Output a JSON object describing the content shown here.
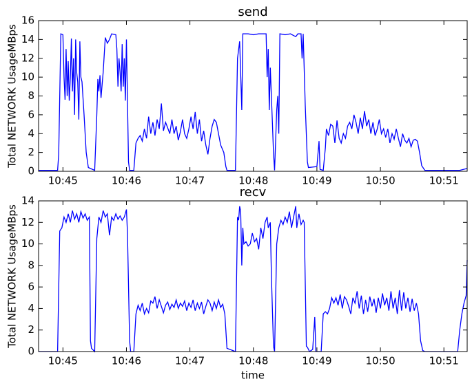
{
  "chart_data": [
    {
      "type": "line",
      "title": "send",
      "ylabel": "Total NETWORK UsageMBps",
      "color": "#0000ff",
      "xlim": [
        "10:44:37",
        "10:51:22"
      ],
      "xticks": [
        "10:45",
        "10:46",
        "10:47",
        "10:48",
        "10:49",
        "10:50",
        "10:51"
      ],
      "ylim": [
        0,
        16
      ],
      "yticks": [
        0,
        2,
        4,
        6,
        8,
        10,
        12,
        14,
        16
      ],
      "x": [
        "10:44:37",
        "10:44:55",
        "10:44:56",
        "10:44:58",
        "10:45:00",
        "10:45:01",
        "10:45:02",
        "10:45:03",
        "10:45:04",
        "10:45:05",
        "10:45:06",
        "10:45:07",
        "10:45:08",
        "10:45:09",
        "10:45:10",
        "10:45:11",
        "10:45:12",
        "10:45:13",
        "10:45:14",
        "10:45:15",
        "10:45:16",
        "10:45:17",
        "10:45:18",
        "10:45:20",
        "10:45:22",
        "10:45:24",
        "10:45:30",
        "10:45:32",
        "10:45:33",
        "10:45:34",
        "10:45:35",
        "10:45:36",
        "10:45:38",
        "10:45:40",
        "10:45:42",
        "10:45:44",
        "10:45:46",
        "10:45:50",
        "10:45:51",
        "10:45:52",
        "10:45:53",
        "10:45:54",
        "10:45:55",
        "10:45:56",
        "10:45:57",
        "10:45:58",
        "10:45:59",
        "10:46:00",
        "10:46:02",
        "10:46:03",
        "10:46:07",
        "10:46:09",
        "10:46:11",
        "10:46:13",
        "10:46:15",
        "10:46:17",
        "10:46:19",
        "10:46:21",
        "10:46:23",
        "10:46:25",
        "10:46:27",
        "10:46:29",
        "10:46:31",
        "10:46:33",
        "10:46:35",
        "10:46:37",
        "10:46:39",
        "10:46:41",
        "10:46:43",
        "10:46:45",
        "10:46:47",
        "10:46:49",
        "10:46:51",
        "10:46:53",
        "10:46:55",
        "10:46:57",
        "10:46:59",
        "10:47:01",
        "10:47:03",
        "10:47:05",
        "10:47:07",
        "10:47:09",
        "10:47:11",
        "10:47:13",
        "10:47:15",
        "10:47:17",
        "10:47:19",
        "10:47:21",
        "10:47:23",
        "10:47:25",
        "10:47:27",
        "10:47:29",
        "10:47:32",
        "10:47:34",
        "10:47:35",
        "10:47:43",
        "10:47:45",
        "10:47:47",
        "10:47:49",
        "10:47:50",
        "10:47:55",
        "10:48:00",
        "10:48:05",
        "10:48:12",
        "10:48:13",
        "10:48:14",
        "10:48:15",
        "10:48:16",
        "10:48:18",
        "10:48:19",
        "10:48:20",
        "10:48:22",
        "10:48:23",
        "10:48:24",
        "10:48:25",
        "10:48:30",
        "10:48:35",
        "10:48:40",
        "10:48:42",
        "10:48:45",
        "10:48:46",
        "10:48:47",
        "10:48:49",
        "10:48:51",
        "10:48:52",
        "10:49:00",
        "10:49:02",
        "10:49:03",
        "10:49:06",
        "10:49:08",
        "10:49:09",
        "10:49:11",
        "10:49:13",
        "10:49:15",
        "10:49:17",
        "10:49:19",
        "10:49:21",
        "10:49:23",
        "10:49:25",
        "10:49:27",
        "10:49:29",
        "10:49:31",
        "10:49:33",
        "10:49:35",
        "10:49:37",
        "10:49:39",
        "10:49:41",
        "10:49:43",
        "10:49:45",
        "10:49:47",
        "10:49:49",
        "10:49:51",
        "10:49:53",
        "10:49:55",
        "10:49:57",
        "10:49:59",
        "10:50:01",
        "10:50:03",
        "10:50:05",
        "10:50:07",
        "10:50:09",
        "10:50:11",
        "10:50:13",
        "10:50:15",
        "10:50:17",
        "10:50:19",
        "10:50:21",
        "10:50:23",
        "10:50:25",
        "10:50:27",
        "10:50:29",
        "10:50:31",
        "10:50:33",
        "10:50:35",
        "10:50:37",
        "10:50:39",
        "10:50:42",
        "10:51:15",
        "10:51:22"
      ],
      "values": [
        0.1,
        0.1,
        1.8,
        14.6,
        14.5,
        10,
        7.6,
        13,
        8,
        11.7,
        7.5,
        10,
        14.1,
        8.5,
        12,
        6,
        14,
        10.5,
        9.5,
        5.5,
        13.8,
        10,
        9.5,
        6,
        2,
        0.4,
        0.1,
        6,
        9.8,
        8.5,
        10.2,
        7.8,
        10.5,
        14.2,
        13.6,
        14,
        14.6,
        14.5,
        13,
        9,
        12,
        10.5,
        8.5,
        13.5,
        9,
        12,
        7.5,
        14,
        1,
        0.1,
        0.1,
        3,
        3.5,
        3.8,
        3.2,
        4.5,
        3.5,
        5.8,
        4,
        5.2,
        3.8,
        5.5,
        4.5,
        7.2,
        4.3,
        5.2,
        4.6,
        4,
        5.5,
        4,
        4.8,
        3.3,
        4.2,
        5.5,
        4,
        3.5,
        4.5,
        5.8,
        4.5,
        6.3,
        4,
        5.5,
        3.2,
        4.3,
        2.8,
        1.8,
        3.5,
        4.8,
        5.5,
        5.2,
        4,
        2.8,
        2,
        0.5,
        0.1,
        0.1,
        12,
        13.8,
        6.5,
        14.6,
        14.6,
        14.5,
        14.6,
        14.6,
        10,
        13,
        6.5,
        11,
        5,
        2,
        0.1,
        6.5,
        8,
        4,
        14.6,
        14.5,
        14.6,
        14.3,
        14.6,
        14.6,
        12,
        14.6,
        7,
        1,
        0.4,
        0.5,
        3.2,
        0.2,
        0.1,
        2.5,
        4.5,
        3.8,
        5,
        4.8,
        3,
        5.4,
        3.5,
        3,
        4,
        3.5,
        4.8,
        5.2,
        4.5,
        6,
        5.2,
        4,
        5.7,
        4.5,
        6.4,
        4.8,
        5.5,
        4,
        5.2,
        3.8,
        4.5,
        5.5,
        4,
        4.5,
        3.6,
        4.5,
        3,
        4,
        3.4,
        4.5,
        3.5,
        2.6,
        4,
        3.3,
        3,
        3.5,
        2.6,
        3.3,
        3.4,
        3.2,
        2,
        0.6,
        0.1,
        0.1,
        0.3
      ]
    },
    {
      "type": "line",
      "title": "recv",
      "ylabel": "Total NETWORK UsageMBps",
      "xlabel": "time",
      "color": "#0000ff",
      "xlim": [
        "10:44:37",
        "10:51:22"
      ],
      "xticks": [
        "10:45",
        "10:46",
        "10:47",
        "10:48",
        "10:49",
        "10:50",
        "10:51"
      ],
      "ylim": [
        0,
        14
      ],
      "yticks": [
        0,
        2,
        4,
        6,
        8,
        10,
        12,
        14
      ],
      "x": [
        "10:44:37",
        "10:44:55",
        "10:44:57",
        "10:44:59",
        "10:45:01",
        "10:45:03",
        "10:45:05",
        "10:45:07",
        "10:45:09",
        "10:45:11",
        "10:45:13",
        "10:45:15",
        "10:45:17",
        "10:45:19",
        "10:45:21",
        "10:45:23",
        "10:45:25",
        "10:45:26",
        "10:45:27",
        "10:45:30",
        "10:45:32",
        "10:45:34",
        "10:45:36",
        "10:45:38",
        "10:45:40",
        "10:45:42",
        "10:45:44",
        "10:45:46",
        "10:45:48",
        "10:45:50",
        "10:45:52",
        "10:45:54",
        "10:45:56",
        "10:45:58",
        "10:46:00",
        "10:46:01",
        "10:46:03",
        "10:46:04",
        "10:46:07",
        "10:46:09",
        "10:46:11",
        "10:46:13",
        "10:46:15",
        "10:46:17",
        "10:46:19",
        "10:46:21",
        "10:46:23",
        "10:46:25",
        "10:46:27",
        "10:46:29",
        "10:46:31",
        "10:46:33",
        "10:46:35",
        "10:46:37",
        "10:46:39",
        "10:46:41",
        "10:46:43",
        "10:46:45",
        "10:46:47",
        "10:46:49",
        "10:46:51",
        "10:46:53",
        "10:46:55",
        "10:46:57",
        "10:46:59",
        "10:47:01",
        "10:47:03",
        "10:47:05",
        "10:47:07",
        "10:47:09",
        "10:47:11",
        "10:47:13",
        "10:47:15",
        "10:47:17",
        "10:47:19",
        "10:47:21",
        "10:47:23",
        "10:47:25",
        "10:47:27",
        "10:47:29",
        "10:47:31",
        "10:47:33",
        "10:47:35",
        "10:47:43",
        "10:47:45",
        "10:47:46",
        "10:47:47",
        "10:47:48",
        "10:47:49",
        "10:47:50",
        "10:47:51",
        "10:47:53",
        "10:47:55",
        "10:47:57",
        "10:47:59",
        "10:48:01",
        "10:48:03",
        "10:48:05",
        "10:48:07",
        "10:48:09",
        "10:48:11",
        "10:48:13",
        "10:48:14",
        "10:48:16",
        "10:48:17",
        "10:48:19",
        "10:48:20",
        "10:48:22",
        "10:48:24",
        "10:48:26",
        "10:48:28",
        "10:48:30",
        "10:48:32",
        "10:48:34",
        "10:48:36",
        "10:48:38",
        "10:48:40",
        "10:48:41",
        "10:48:43",
        "10:48:45",
        "10:48:47",
        "10:48:48",
        "10:48:50",
        "10:48:51",
        "10:48:53",
        "10:48:56",
        "10:48:58",
        "10:48:59",
        "10:49:04",
        "10:49:06",
        "10:49:08",
        "10:49:10",
        "10:49:12",
        "10:49:14",
        "10:49:16",
        "10:49:18",
        "10:49:20",
        "10:49:22",
        "10:49:24",
        "10:49:26",
        "10:49:28",
        "10:49:30",
        "10:49:32",
        "10:49:34",
        "10:49:36",
        "10:49:38",
        "10:49:40",
        "10:49:42",
        "10:49:44",
        "10:49:46",
        "10:49:48",
        "10:49:50",
        "10:49:52",
        "10:49:54",
        "10:49:56",
        "10:49:58",
        "10:50:00",
        "10:50:02",
        "10:50:04",
        "10:50:06",
        "10:50:08",
        "10:50:10",
        "10:50:12",
        "10:50:14",
        "10:50:16",
        "10:50:18",
        "10:50:20",
        "10:50:22",
        "10:50:24",
        "10:50:26",
        "10:50:28",
        "10:50:30",
        "10:50:32",
        "10:50:34",
        "10:50:36",
        "10:50:38",
        "10:50:40",
        "10:50:42",
        "10:51:13",
        "10:51:15",
        "10:51:17",
        "10:51:19",
        "10:51:21",
        "10:51:22"
      ],
      "values": [
        0,
        0,
        11.2,
        11.5,
        12.5,
        12,
        12.8,
        12,
        13.1,
        12.3,
        12.8,
        12,
        13,
        12.4,
        12.8,
        12.2,
        12.5,
        1,
        0.3,
        0,
        10.5,
        12.5,
        12,
        13.1,
        12.5,
        12.8,
        10.8,
        12.5,
        12.2,
        12.8,
        12.3,
        12.6,
        12.2,
        12.5,
        13.2,
        11,
        1,
        0,
        0,
        3.5,
        4.3,
        3.8,
        4.5,
        3.5,
        4,
        3.6,
        4.7,
        4.5,
        5.1,
        4,
        4.8,
        4.2,
        3.6,
        4.3,
        4.6,
        3.9,
        4.4,
        4.1,
        4.8,
        4,
        4.5,
        4.2,
        4.7,
        3.8,
        4.5,
        4.1,
        4.8,
        3.8,
        4.5,
        4,
        4.6,
        3.5,
        4.2,
        4.8,
        4.5,
        3.8,
        4.6,
        4,
        4.8,
        4.1,
        4.4,
        3.5,
        0.3,
        0,
        12.5,
        12.2,
        13.5,
        13,
        8,
        11.5,
        10,
        10.2,
        9.8,
        10,
        11,
        10.2,
        10.5,
        9.5,
        11.5,
        10.5,
        12,
        12.5,
        11.5,
        12,
        7,
        0.5,
        0,
        10,
        11.5,
        12.2,
        11.8,
        12.5,
        12,
        13,
        11.5,
        12.5,
        13.5,
        11.5,
        12.8,
        11.8,
        12.2,
        12,
        0.5,
        0.4,
        0,
        0.2,
        3.2,
        0,
        0,
        3.5,
        3.7,
        3.5,
        4,
        5,
        4.5,
        5,
        4.3,
        5.3,
        4,
        5.1,
        4.8,
        4.2,
        3.5,
        5,
        4.5,
        5.6,
        4,
        5.2,
        3.5,
        4.8,
        3.7,
        5.1,
        4.2,
        4.9,
        3.6,
        5,
        4,
        5.4,
        4.3,
        5,
        3.8,
        5.6,
        4,
        5,
        3.5,
        5.7,
        3.8,
        5.5,
        4,
        5,
        3.7,
        4.9,
        3.8,
        4.5,
        3.5,
        1,
        0.1,
        0,
        0,
        2,
        3.5,
        4.5,
        5.2,
        8.5
      ]
    }
  ]
}
